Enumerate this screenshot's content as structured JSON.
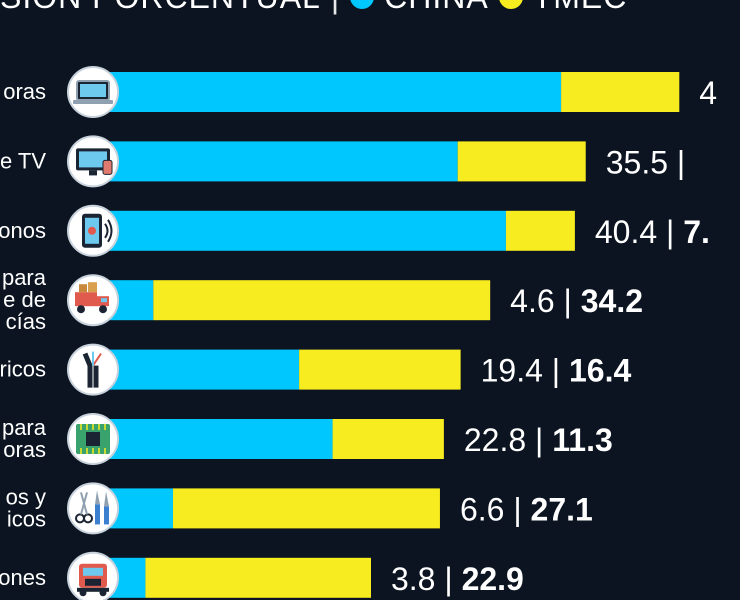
{
  "header": {
    "title": "SIÓN PORCENTUAL",
    "legend": [
      {
        "name": "CHINA",
        "color": "#00c8ff"
      },
      {
        "name": "TMEC",
        "color": "#f7ec1f"
      }
    ]
  },
  "chart_data": {
    "type": "bar",
    "stacked": true,
    "orientation": "horizontal",
    "categories": [
      [
        "oras"
      ],
      [
        "e TV"
      ],
      [
        "onos"
      ],
      [
        "para",
        "e de",
        "cías"
      ],
      [
        "ricos"
      ],
      [
        "para",
        "oras"
      ],
      [
        "os y",
        "icos"
      ],
      [
        "iones"
      ]
    ],
    "series": [
      {
        "name": "CHINA",
        "color": "#00c8ff",
        "values": [
          46.0,
          35.5,
          40.4,
          4.6,
          19.4,
          22.8,
          6.6,
          3.8
        ]
      },
      {
        "name": "TMEC",
        "color": "#f7ec1f",
        "values": [
          12.0,
          13.0,
          7.0,
          34.2,
          16.4,
          11.3,
          27.1,
          22.9
        ]
      }
    ],
    "value_labels": [
      [
        "4",
        ""
      ],
      [
        "35.5 |",
        ""
      ],
      [
        "40.4 |",
        "7."
      ],
      [
        "4.6 |",
        "34.2"
      ],
      [
        "19.4 |",
        "16.4"
      ],
      [
        "22.8 |",
        "11.3"
      ],
      [
        "6.6 |",
        "27.1"
      ],
      [
        "3.8 |",
        "22.9"
      ]
    ],
    "icons": [
      "laptop-icon",
      "television-icon",
      "smartphone-icon",
      "delivery-truck-icon",
      "electric-cable-icon",
      "circuit-board-icon",
      "surgical-instruments-icon",
      "semi-truck-icon"
    ],
    "grid": false
  }
}
